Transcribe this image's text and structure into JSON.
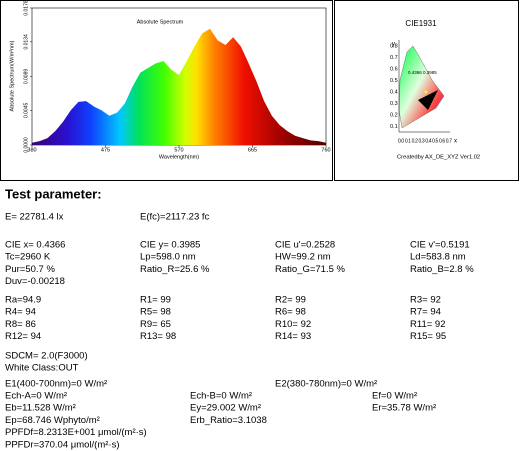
{
  "spectrum": {
    "title": "Absolute Spectrum",
    "x_label": "Wavelength(nm)",
    "y_label": "Absolute Spectrum(W/m²nm)",
    "x": [
      380,
      390,
      400,
      410,
      420,
      430,
      440,
      450,
      460,
      470,
      480,
      490,
      500,
      510,
      520,
      530,
      540,
      550,
      560,
      570,
      580,
      590,
      600,
      610,
      620,
      630,
      640,
      650,
      660,
      670,
      680,
      690,
      700,
      710,
      720,
      730,
      740,
      750,
      760
    ],
    "values": [
      0.0003,
      0.0005,
      0.0009,
      0.0018,
      0.003,
      0.0045,
      0.0056,
      0.0057,
      0.005,
      0.0045,
      0.0038,
      0.0042,
      0.0054,
      0.0076,
      0.0094,
      0.01,
      0.0106,
      0.0109,
      0.0098,
      0.0091,
      0.0109,
      0.0128,
      0.0145,
      0.0151,
      0.0136,
      0.013,
      0.014,
      0.0128,
      0.0106,
      0.0083,
      0.0057,
      0.0038,
      0.0026,
      0.0018,
      0.0012,
      0.0009,
      0.0006,
      0.0005,
      0.0003
    ],
    "xlim": [
      380,
      760
    ],
    "xticks": [
      380,
      475,
      570,
      665,
      760
    ],
    "ylim": [
      0,
      0.0178
    ],
    "yticks": [
      {
        "value": 0,
        "label": "0.0000"
      },
      0.0045,
      0.0089,
      0.0134,
      0.0178
    ]
  },
  "cie": {
    "title": "CIE1931",
    "y_axis": "y",
    "x_axis": "x",
    "yticks": [
      "0.8",
      "0.7",
      "0.6",
      "0.5",
      "0.4",
      "0.3",
      "0.2",
      "0.1"
    ],
    "xticks": "0.0 0.1 0.2 0.3 0.4 0.5 0.6 0.7",
    "point_label": "0.4366 0.3985",
    "footer": "Createdby AX_DE_XYZ Ver1.02"
  },
  "heading": "Test parameter:",
  "blocks": {
    "illuminance": [
      [
        "E= 22781.4 lx",
        "E(fc)=2117.23 fc"
      ]
    ],
    "color": [
      [
        "CIE x= 0.4366",
        "CIE y= 0.3985",
        "CIE u'=0.2528",
        "CIE v'=0.5191"
      ],
      [
        "Tc=2960 K",
        "Lp=598.0 nm",
        "HW=99.2 nm",
        "Ld=583.8 nm"
      ],
      [
        "Pur=50.7 %",
        "Ratio_R=25.6 %",
        "Ratio_G=71.5 %",
        "Ratio_B=2.8 %"
      ],
      [
        "Duv=-0.00218"
      ]
    ],
    "rendering": [
      [
        "Ra=94.9",
        "R1= 99",
        "R2= 99",
        "R3= 92"
      ],
      [
        "R4= 94",
        "R5= 98",
        "R6= 98",
        "R7= 94"
      ],
      [
        "R8= 86",
        "R9= 65",
        "R10= 92",
        "R11= 92"
      ],
      [
        "R12= 94",
        "R13= 98",
        "R14= 93",
        "R15= 95"
      ]
    ],
    "sdcm": [
      [
        "SDCM= 2.0(F3000)"
      ],
      [
        "White Class:OUT"
      ]
    ],
    "irradiance": [
      [
        "E1(400-700nm)=0 W/m²",
        "E2(380-780nm)=0 W/m²"
      ]
    ],
    "plant": [
      [
        "Ech-A=0 W/m²",
        "Ech-B=0 W/m²",
        "Ef=0 W/m²"
      ],
      [
        "Eb=11.528 W/m²",
        "Ey=29.002 W/m²",
        "Er=35.78 W/m²"
      ],
      [
        "Ep=68.746 Wphyto/m²",
        "Erb_Ratio=3.1038"
      ],
      [
        "PPFDf=8.2313E+001 μmol/(m²·s)"
      ],
      [
        "PPFDr=370.04 μmol/(m²·s)"
      ]
    ]
  }
}
